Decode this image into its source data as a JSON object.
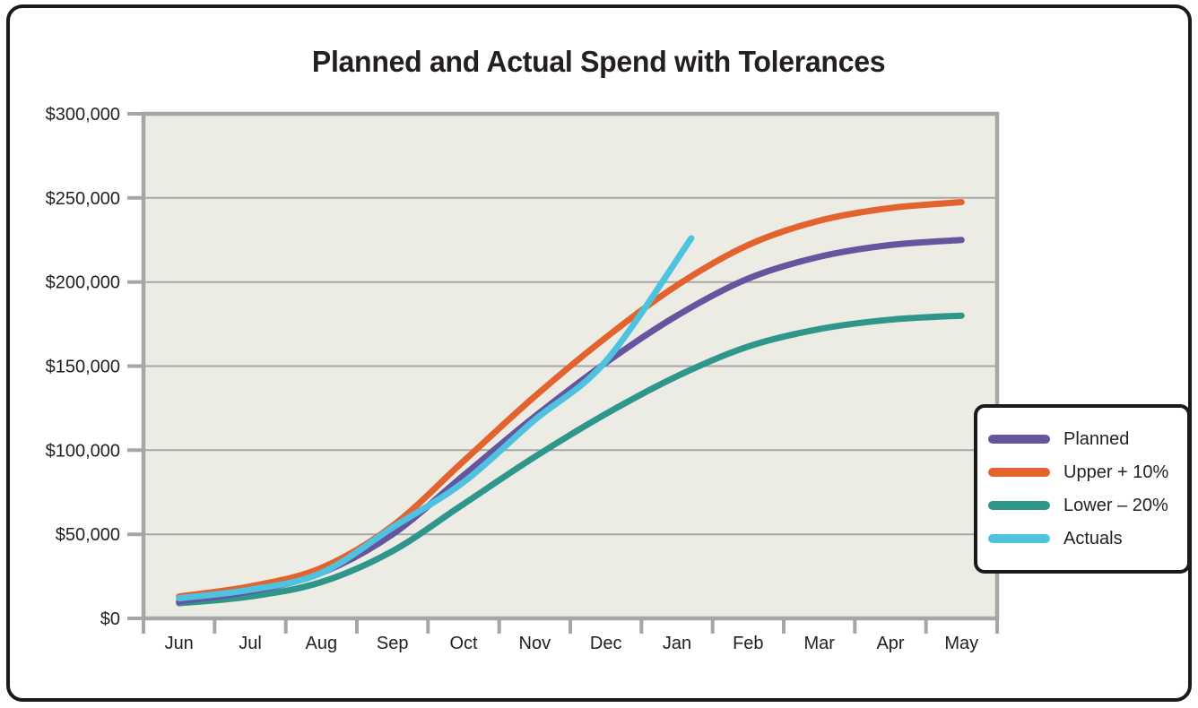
{
  "chart_data": {
    "type": "line",
    "title": "Planned and Actual Spend with Tolerances",
    "categories": [
      "Jun",
      "Jul",
      "Aug",
      "Sep",
      "Oct",
      "Nov",
      "Dec",
      "Jan",
      "Feb",
      "Mar",
      "Apr",
      "May"
    ],
    "xlabel": "",
    "ylabel": "",
    "ylim": [
      0,
      300000
    ],
    "y_ticks": [
      0,
      50000,
      100000,
      150000,
      200000,
      250000,
      300000
    ],
    "y_tick_labels": [
      "$0",
      "$50,000",
      "$100,000",
      "$150,000",
      "$200,000",
      "$250,000",
      "$300,000"
    ],
    "grid": "horizontal",
    "legend_position": "right-overlay",
    "colors": {
      "plot_bg": "#edece4",
      "grid": "#a6a6a6",
      "axis": "#a6a6a6",
      "text": "#231f20",
      "frame": "#1a1a1a"
    },
    "series": [
      {
        "name": "Planned",
        "color": "#67549f",
        "values": [
          10000,
          16000,
          27000,
          50000,
          85000,
          120000,
          152000,
          180000,
          202000,
          215000,
          222000,
          225000
        ]
      },
      {
        "name": "Upper + 10%",
        "color": "#e2632e",
        "values": [
          13000,
          19000,
          30000,
          55000,
          93500,
          132000,
          167000,
          198000,
          222000,
          236500,
          244000,
          247500
        ]
      },
      {
        "name": "Lower – 20%",
        "color": "#2f968c",
        "values": [
          9000,
          13000,
          21600,
          40000,
          68000,
          96000,
          121600,
          144000,
          161600,
          172000,
          177600,
          180000
        ]
      },
      {
        "name": "Actuals",
        "color": "#4fc2e0",
        "values": [
          12000,
          17000,
          27000,
          54000,
          81000,
          118000,
          153000,
          226000
        ],
        "x": [
          0,
          1,
          2,
          3,
          4,
          5,
          6,
          7.2
        ]
      }
    ]
  }
}
